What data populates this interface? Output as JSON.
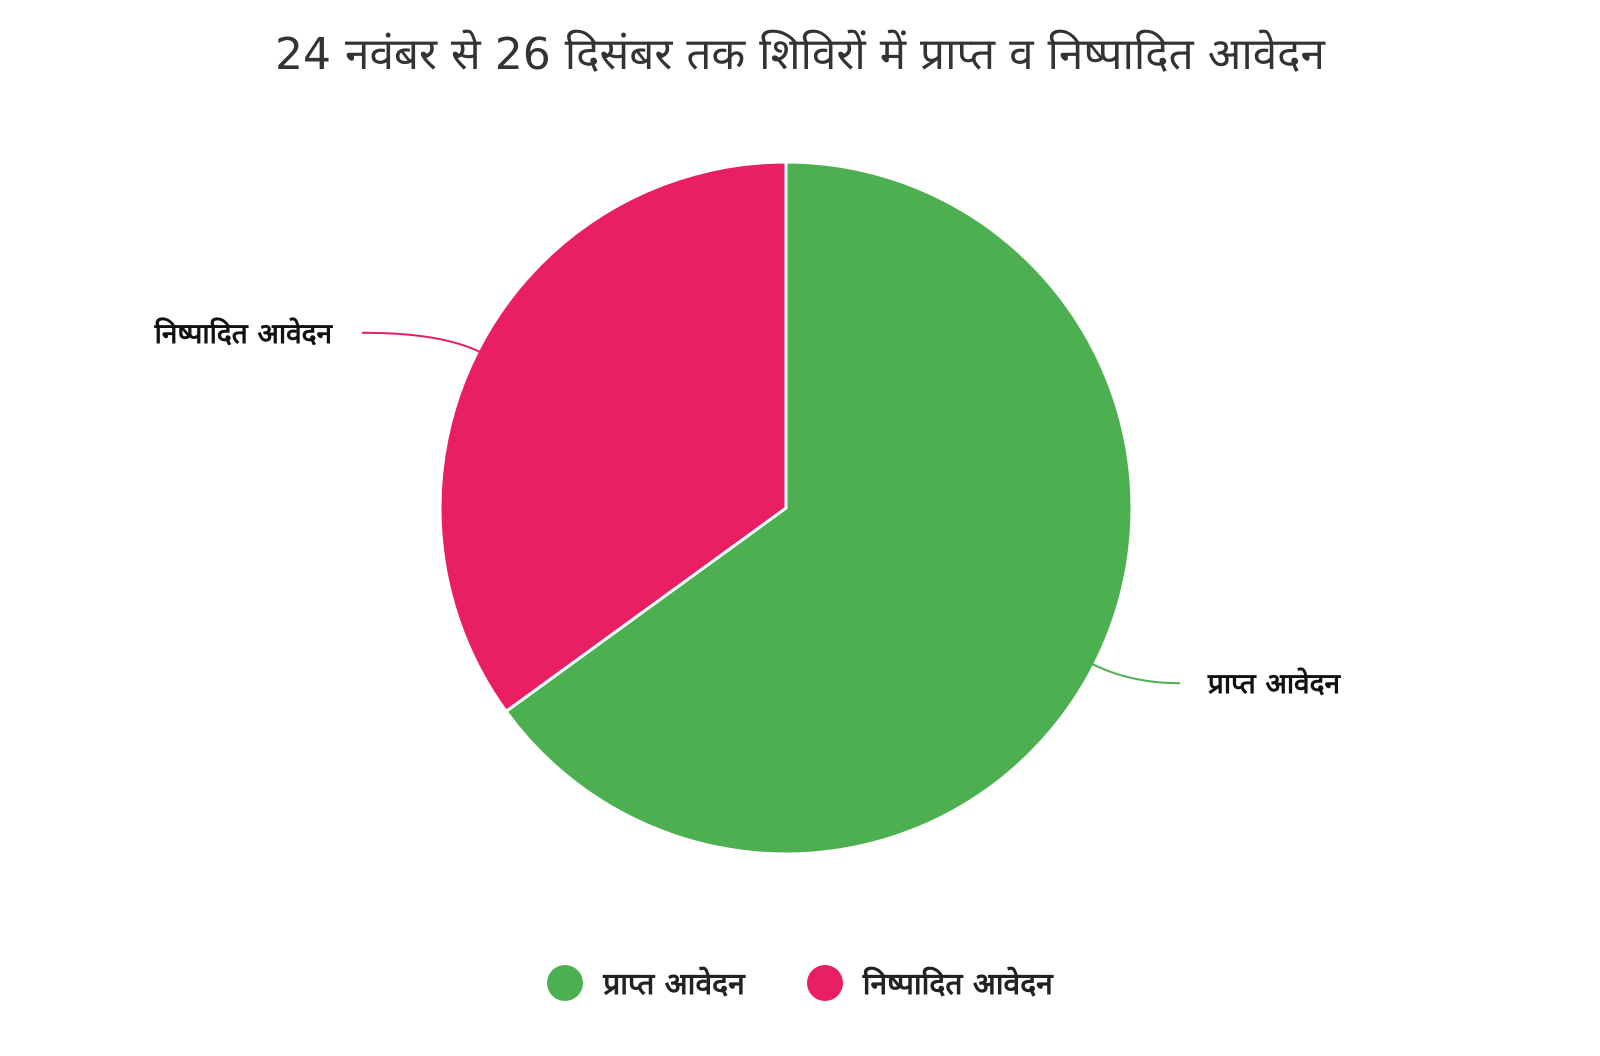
{
  "chart_data": {
    "type": "pie",
    "title": "24 नवंबर से 26 दिसंबर तक शिविरों में प्राप्त व निष्पादित आवेदन",
    "slices": [
      {
        "label": "प्राप्त आवेदन",
        "value": 65,
        "color": "#4caf50"
      },
      {
        "label": "निष्पादित आवेदन",
        "value": 35,
        "color": "#e91e63"
      }
    ],
    "legend_position": "bottom"
  }
}
